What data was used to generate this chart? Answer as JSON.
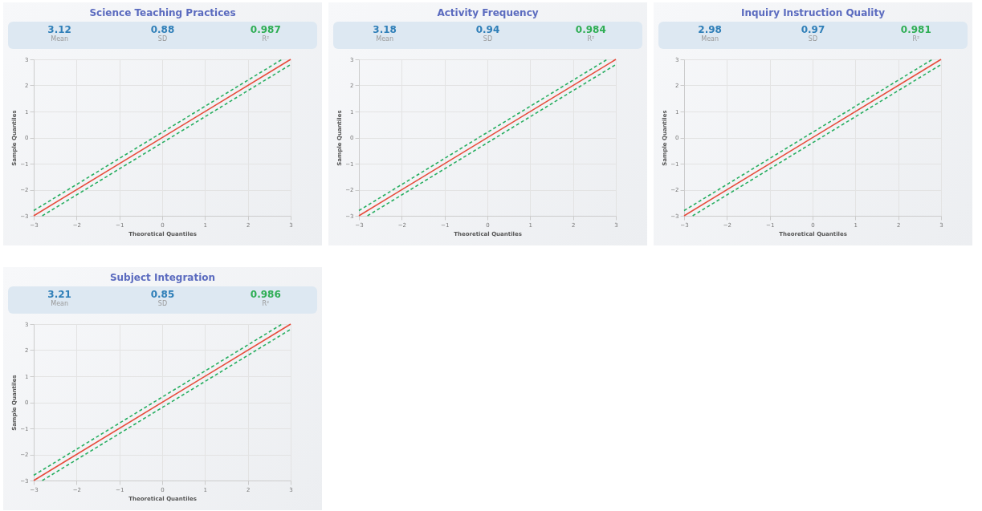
{
  "chart_data": [
    {
      "type": "line",
      "title": "Science Teaching Practices",
      "annotations": [
        "3.12",
        "Mean",
        "0.88",
        "SD",
        "0.987",
        "R²"
      ],
      "xlabel": "Theoretical Quantiles",
      "ylabel": "Sample Quantiles",
      "xlim": [
        -3,
        3
      ],
      "ylim": [
        -3,
        3
      ],
      "xticks": [
        -3,
        -2,
        -1,
        0,
        1,
        2,
        3
      ],
      "yticks": [
        -3,
        -2,
        -1,
        0,
        1,
        2,
        3
      ],
      "grid": true,
      "series": [
        {
          "x": [
            -3,
            3
          ],
          "values": [
            -3,
            3
          ],
          "color": "#e74c3c",
          "line_style": "solid"
        },
        {
          "x": [
            -3,
            2.8
          ],
          "values": [
            -2.8,
            3
          ],
          "color": "#27ae60",
          "line_style": "dashed"
        },
        {
          "x": [
            -2.8,
            3
          ],
          "values": [
            -3,
            2.8
          ],
          "color": "#27ae60",
          "line_style": "dashed"
        }
      ]
    },
    {
      "type": "line",
      "title": "Activity Frequency",
      "annotations": [
        "3.18",
        "Mean",
        "0.94",
        "SD",
        "0.984",
        "R²"
      ],
      "xlabel": "Theoretical Quantiles",
      "ylabel": "Sample Quantiles",
      "xlim": [
        -3,
        3
      ],
      "ylim": [
        -3,
        3
      ],
      "xticks": [
        -3,
        -2,
        -1,
        0,
        1,
        2,
        3
      ],
      "yticks": [
        -3,
        -2,
        -1,
        0,
        1,
        2,
        3
      ],
      "grid": true,
      "series": [
        {
          "x": [
            -3,
            3
          ],
          "values": [
            -3,
            3
          ],
          "color": "#e74c3c",
          "line_style": "solid"
        },
        {
          "x": [
            -3,
            2.8
          ],
          "values": [
            -2.8,
            3
          ],
          "color": "#27ae60",
          "line_style": "dashed"
        },
        {
          "x": [
            -2.8,
            3
          ],
          "values": [
            -3,
            2.8
          ],
          "color": "#27ae60",
          "line_style": "dashed"
        }
      ]
    },
    {
      "type": "line",
      "title": "Inquiry Instruction Quality",
      "annotations": [
        "2.98",
        "Mean",
        "0.97",
        "SD",
        "0.981",
        "R²"
      ],
      "xlabel": "Theoretical Quantiles",
      "ylabel": "Sample Quantiles",
      "xlim": [
        -3,
        3
      ],
      "ylim": [
        -3,
        3
      ],
      "xticks": [
        -3,
        -2,
        -1,
        0,
        1,
        2,
        3
      ],
      "yticks": [
        -3,
        -2,
        -1,
        0,
        1,
        2,
        3
      ],
      "grid": true,
      "series": [
        {
          "x": [
            -3,
            3
          ],
          "values": [
            -3,
            3
          ],
          "color": "#e74c3c",
          "line_style": "solid"
        },
        {
          "x": [
            -3,
            2.8
          ],
          "values": [
            -2.8,
            3
          ],
          "color": "#27ae60",
          "line_style": "dashed"
        },
        {
          "x": [
            -2.8,
            3
          ],
          "values": [
            -3,
            2.8
          ],
          "color": "#27ae60",
          "line_style": "dashed"
        }
      ]
    },
    {
      "type": "line",
      "title": "Subject Integration",
      "annotations": [
        "3.21",
        "Mean",
        "0.85",
        "SD",
        "0.986",
        "R²"
      ],
      "xlabel": "Theoretical Quantiles",
      "ylabel": "Sample Quantiles",
      "xlim": [
        -3,
        3
      ],
      "ylim": [
        -3,
        3
      ],
      "xticks": [
        -3,
        -2,
        -1,
        0,
        1,
        2,
        3
      ],
      "yticks": [
        -3,
        -2,
        -1,
        0,
        1,
        2,
        3
      ],
      "grid": true,
      "series": [
        {
          "x": [
            -3,
            3
          ],
          "values": [
            -3,
            3
          ],
          "color": "#e74c3c",
          "line_style": "solid"
        },
        {
          "x": [
            -3,
            2.8
          ],
          "values": [
            -2.8,
            3
          ],
          "color": "#27ae60",
          "line_style": "dashed"
        },
        {
          "x": [
            -2.8,
            3
          ],
          "values": [
            -3,
            2.8
          ],
          "color": "#27ae60",
          "line_style": "dashed"
        }
      ]
    }
  ]
}
